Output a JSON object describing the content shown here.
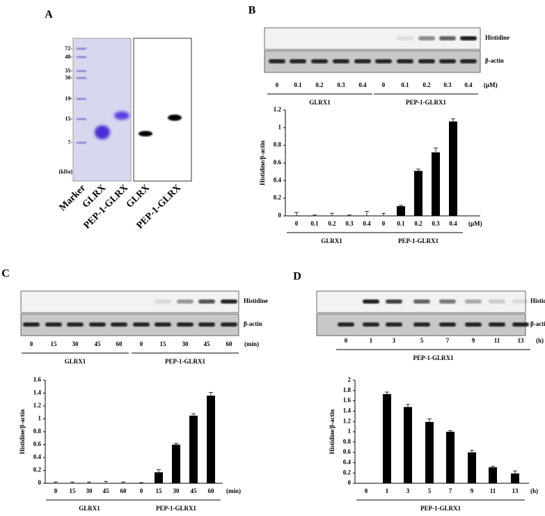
{
  "panels": [
    "A",
    "B",
    "C",
    "D"
  ],
  "gel": {
    "markers": [
      "72-",
      "48-",
      "35-",
      "30-",
      "19-",
      "15-",
      "7-"
    ],
    "unit": "(kDa)",
    "lanes": [
      "Marker",
      "GLRX",
      "PEP-1-GLRX",
      "GLRX",
      "PEP-1-GLRX"
    ]
  },
  "blots": [
    {
      "rows": [
        "Histidine",
        "β-actin"
      ],
      "lanes": [
        "0",
        "0.1",
        "0.2",
        "0.3",
        "0.4",
        "0",
        "0.1",
        "0.2",
        "0.3",
        "0.4"
      ],
      "unit": "(μM)",
      "groups": [
        "GLRX1",
        "PEP-1-GLRX1"
      ]
    },
    {
      "rows": [
        "Histidine",
        "β-actin"
      ],
      "lanes": [
        "0",
        "15",
        "30",
        "45",
        "60",
        "0",
        "15",
        "30",
        "45",
        "60"
      ],
      "unit": "(min)",
      "groups": [
        "GLRX1",
        "PEP-1-GLRX1"
      ]
    },
    {
      "rows": [
        "Histidine",
        "β-actin"
      ],
      "lanes": [
        "0",
        "1",
        "3",
        "5",
        "7",
        "9",
        "11",
        "13"
      ],
      "unit": "(h)",
      "groups": [
        "PEP-1-GLRX1"
      ]
    }
  ],
  "chart_data": [
    {
      "type": "bar",
      "ylabel": "Histidine/β-actin",
      "color": "#000000",
      "categories": [
        "0",
        "0.1",
        "0.2",
        "0.3",
        "0.4",
        "0",
        "0.1",
        "0.2",
        "0.3",
        "0.4"
      ],
      "values": [
        0,
        0,
        0,
        0,
        0,
        0,
        0.11,
        0.51,
        0.72,
        1.07
      ],
      "errors": [
        0.04,
        0.01,
        0.03,
        0.01,
        0.05,
        0.03,
        0.01,
        0.02,
        0.05,
        0.03
      ],
      "unit": "(μM)",
      "groups": [
        "GLRX1",
        "PEP-1-GLRX1"
      ],
      "ylim": [
        0,
        1.2
      ],
      "yticks": [
        0,
        0.2,
        0.4,
        0.6,
        0.8,
        1,
        1.2
      ]
    },
    {
      "type": "bar",
      "ylabel": "Histidine/β-actin",
      "color": "#000000",
      "categories": [
        "0",
        "15",
        "30",
        "45",
        "60",
        "0",
        "15",
        "30",
        "45",
        "60"
      ],
      "values": [
        0,
        0,
        0,
        0,
        0,
        0,
        0.17,
        0.6,
        1.05,
        1.36
      ],
      "errors": [
        0.02,
        0.02,
        0.02,
        0.03,
        0.02,
        0.01,
        0.04,
        0.02,
        0.03,
        0.05
      ],
      "unit": "(min)",
      "groups": [
        "GLRX1",
        "PEP-1-GLRX1"
      ],
      "ylim": [
        0,
        1.6
      ],
      "yticks": [
        0,
        0.2,
        0.4,
        0.6,
        0.8,
        1,
        1.2,
        1.4,
        1.6
      ]
    },
    {
      "type": "bar",
      "ylabel": "Histidine/β-actin",
      "color": "#000000",
      "categories": [
        "0",
        "1",
        "3",
        "5",
        "7",
        "9",
        "11",
        "13"
      ],
      "values": [
        0,
        1.73,
        1.48,
        1.19,
        1.0,
        0.6,
        0.31,
        0.19
      ],
      "errors": [
        0,
        0.04,
        0.05,
        0.06,
        0.02,
        0.04,
        0.02,
        0.05
      ],
      "unit": "(h)",
      "groups": [
        "PEP-1-GLRX1"
      ],
      "ylim": [
        0,
        2
      ],
      "yticks": [
        0,
        0.2,
        0.4,
        0.6,
        0.8,
        1,
        1.2,
        1.4,
        1.6,
        1.8,
        2
      ]
    }
  ]
}
